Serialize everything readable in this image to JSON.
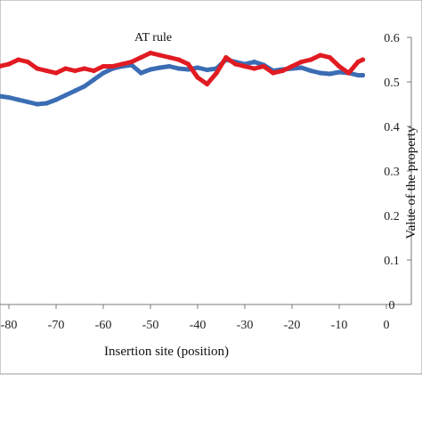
{
  "chart_data": {
    "type": "line",
    "title": "AT rule",
    "xlabel": "Insertion site (position)",
    "ylabel": "Value of the property",
    "xlim": [
      -88,
      0
    ],
    "ylim": [
      0,
      0.6
    ],
    "x_ticks": [
      -80,
      -70,
      -60,
      -50,
      -40,
      -30,
      -20,
      -10,
      0
    ],
    "x_tick_labels": [
      "-80",
      "-70",
      "-60",
      "-50",
      "-40",
      "-30",
      "-20",
      "-10",
      "0"
    ],
    "y_ticks": [
      0,
      0.1,
      0.2,
      0.3,
      0.4,
      0.5,
      0.6
    ],
    "y_tick_labels": [
      "0",
      "0.1",
      "0.2",
      "0.3",
      "0.4",
      "0.5",
      "0.6"
    ],
    "y_axis_side": "right",
    "grid": false,
    "legend": "none",
    "series": [
      {
        "color": "#3b6db4",
        "x": [
          -88,
          -86,
          -84,
          -82,
          -80,
          -78,
          -76,
          -74,
          -72,
          -70,
          -68,
          -66,
          -64,
          -62,
          -60,
          -58,
          -56,
          -54,
          -52,
          -50,
          -48,
          -46,
          -44,
          -42,
          -40,
          -38,
          -36,
          -34,
          -32,
          -30,
          -28,
          -26,
          -24,
          -22,
          -20,
          -18,
          -16,
          -14,
          -12,
          -10,
          -8,
          -6,
          -5
        ],
        "values": [
          0.475,
          0.472,
          0.47,
          0.468,
          0.465,
          0.46,
          0.455,
          0.45,
          0.452,
          0.46,
          0.47,
          0.48,
          0.49,
          0.505,
          0.52,
          0.53,
          0.535,
          0.538,
          0.52,
          0.528,
          0.532,
          0.535,
          0.53,
          0.528,
          0.532,
          0.527,
          0.53,
          0.55,
          0.545,
          0.54,
          0.545,
          0.538,
          0.525,
          0.528,
          0.53,
          0.532,
          0.525,
          0.52,
          0.518,
          0.522,
          0.52,
          0.515,
          0.515
        ]
      },
      {
        "color": "#e11b22",
        "x": [
          -88,
          -86,
          -84,
          -82,
          -80,
          -78,
          -76,
          -74,
          -72,
          -70,
          -68,
          -66,
          -64,
          -62,
          -60,
          -58,
          -56,
          -54,
          -52,
          -50,
          -48,
          -46,
          -44,
          -42,
          -40,
          -38,
          -36,
          -34,
          -32,
          -30,
          -28,
          -26,
          -24,
          -22,
          -20,
          -18,
          -16,
          -14,
          -12,
          -10,
          -8,
          -6,
          -5
        ],
        "values": [
          0.545,
          0.54,
          0.538,
          0.535,
          0.54,
          0.55,
          0.545,
          0.53,
          0.525,
          0.52,
          0.53,
          0.525,
          0.53,
          0.525,
          0.535,
          0.535,
          0.54,
          0.545,
          0.555,
          0.565,
          0.56,
          0.555,
          0.55,
          0.54,
          0.51,
          0.495,
          0.52,
          0.555,
          0.54,
          0.535,
          0.53,
          0.535,
          0.52,
          0.525,
          0.535,
          0.545,
          0.55,
          0.56,
          0.555,
          0.535,
          0.52,
          0.545,
          0.55
        ]
      }
    ]
  }
}
